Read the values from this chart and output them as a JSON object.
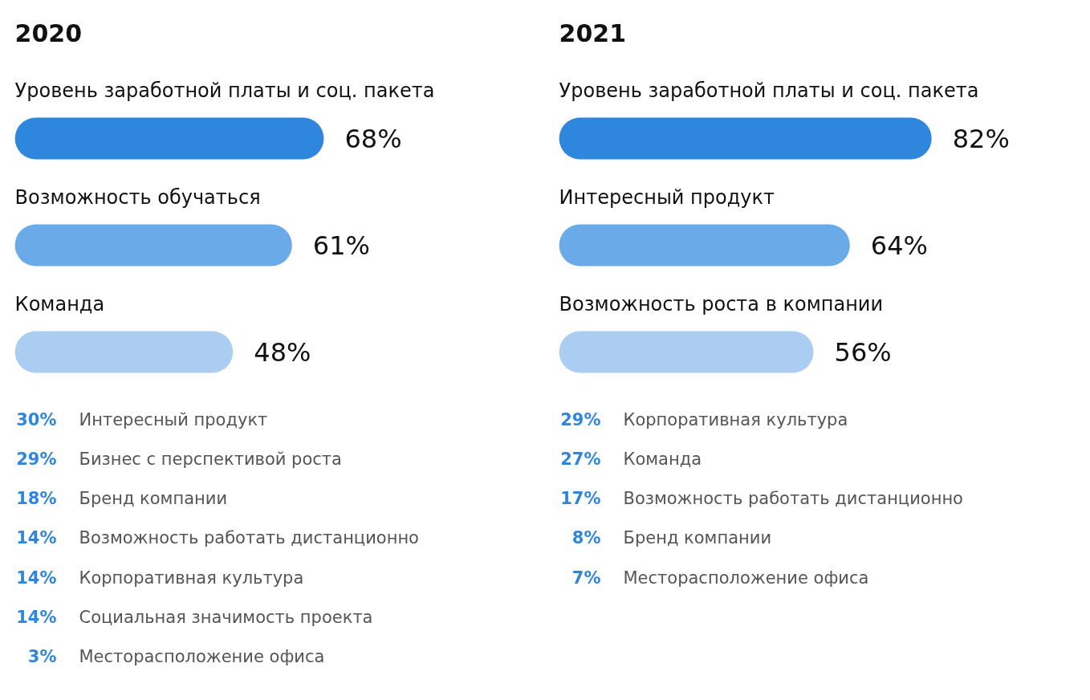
{
  "chart_data": [
    {
      "type": "bar",
      "orientation": "horizontal",
      "title": "2020",
      "tick_labels": false,
      "categories": [
        "Уровень заработной платы и соц. пакета",
        "Возможность обучаться",
        "Команда"
      ],
      "values": [
        68,
        61,
        48
      ],
      "value_labels": [
        "68%",
        "61%",
        "48%"
      ],
      "colors": [
        "#2f86dd",
        "#6aaae8",
        "#abcdf2"
      ]
    },
    {
      "type": "other",
      "categories": [
        "Интересный продукт",
        "Бизнес с перспективой роста",
        "Бренд компании",
        "Возможность работать дистанционно",
        "Корпоративная культура",
        "Социальная значимость проекта",
        "Месторасположение офиса"
      ],
      "values": [
        30,
        29,
        18,
        14,
        14,
        14,
        3
      ],
      "value_labels": [
        "30%",
        "29%",
        "18%",
        "14%",
        "14%",
        "14%",
        "3%"
      ]
    },
    {
      "type": "bar",
      "orientation": "horizontal",
      "title": "2021",
      "tick_labels": false,
      "categories": [
        "Уровень заработной платы и соц. пакета",
        "Интересный продукт",
        "Возможность роста в компании"
      ],
      "values": [
        82,
        64,
        56
      ],
      "value_labels": [
        "82%",
        "64%",
        "56%"
      ],
      "colors": [
        "#2f86dd",
        "#6aaae8",
        "#abcdf2"
      ]
    },
    {
      "type": "other",
      "categories": [
        "Корпоративная культура",
        "Команда",
        "Возможность работать дистанционно",
        "Бренд компании",
        "Месторасположение офиса"
      ],
      "values": [
        29,
        27,
        17,
        8,
        7
      ],
      "value_labels": [
        "29%",
        "27%",
        "17%",
        "8%",
        "7%"
      ]
    }
  ]
}
